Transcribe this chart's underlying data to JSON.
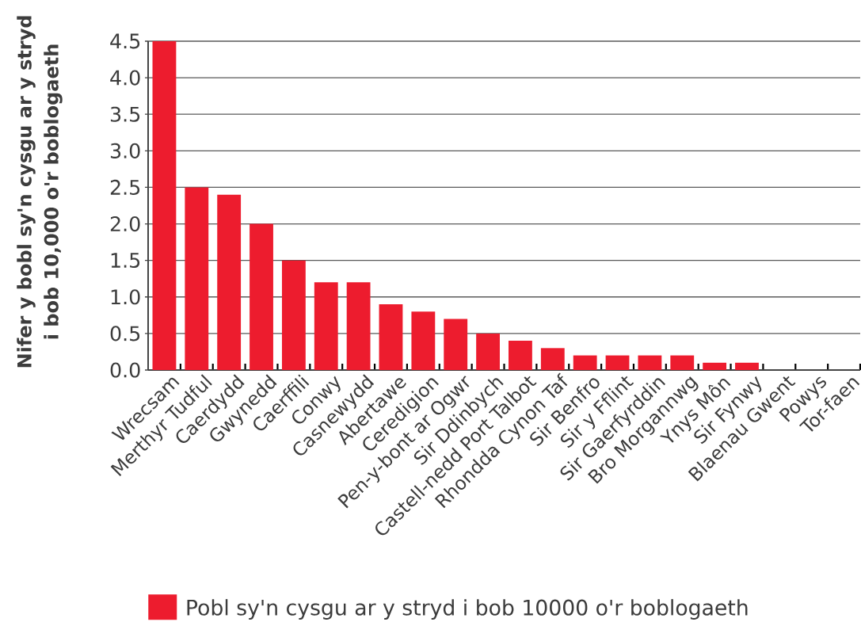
{
  "chart_data": {
    "type": "bar",
    "ylabel": "Nifer y bobl sy'n cysgu ar y stryd i bob 10,000 o'r boblogaeth",
    "categories": [
      "Wrecsam",
      "Merthyr Tudful",
      "Caerdydd",
      "Gwynedd",
      "Caerffili",
      "Conwy",
      "Casnewydd",
      "Abertawe",
      "Ceredigion",
      "Pen-y-bont ar Ogwr",
      "Sir Ddinbych",
      "Castell-nedd Port Talbot",
      "Rhondda Cynon Taf",
      "Sir Benfro",
      "Sir y Fflint",
      "Sir Gaerfyrddin",
      "Bro Morgannwg",
      "Ynys Môn",
      "Sir Fynwy",
      "Blaenau Gwent",
      "Powys",
      "Tor-faen"
    ],
    "series": [
      {
        "name": "Pobl sy'n cysgu ar y stryd i bob 10000 o'r boblogaeth",
        "color": "#ed1c2e",
        "values": [
          4.5,
          2.5,
          2.4,
          2.0,
          1.5,
          1.2,
          1.2,
          0.9,
          0.8,
          0.7,
          0.5,
          0.4,
          0.3,
          0.2,
          0.2,
          0.2,
          0.2,
          0.1,
          0.1,
          0,
          0,
          0
        ]
      }
    ],
    "ylim": [
      0,
      4.5
    ],
    "yticks": [
      {
        "value": 0,
        "label": "0.0"
      },
      0.5,
      {
        "value": 1,
        "label": "1.0"
      },
      1.5,
      {
        "value": 2,
        "label": "2.0"
      },
      2.5,
      {
        "value": 3,
        "label": "3.0"
      },
      3.5,
      {
        "value": 4,
        "label": "4.0"
      },
      4.5
    ],
    "grid": "y",
    "legend": "bottom"
  }
}
